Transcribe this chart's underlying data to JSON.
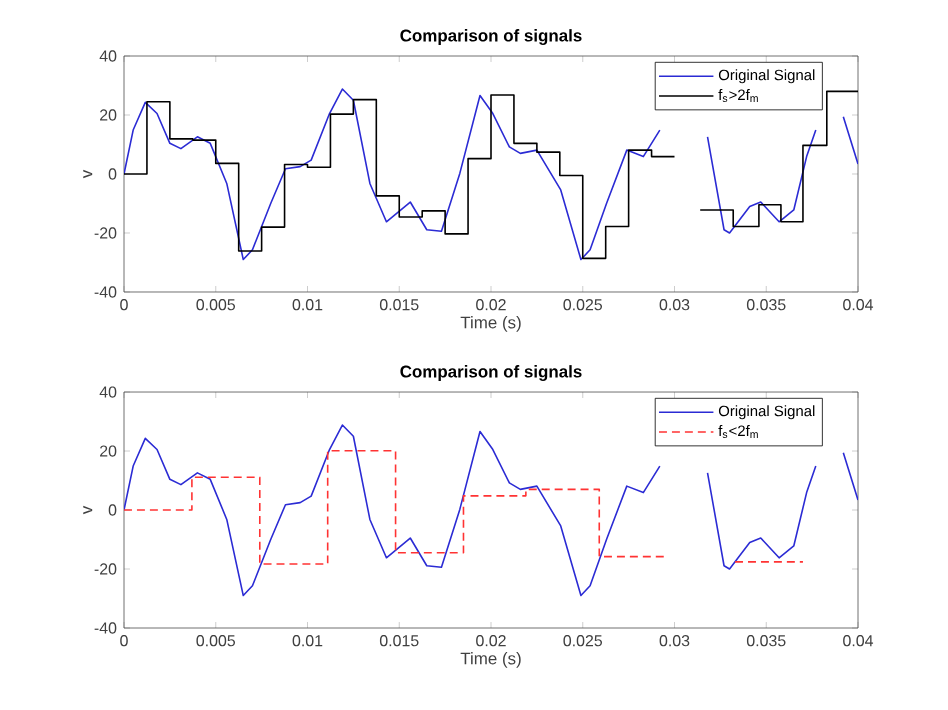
{
  "chart_data": [
    {
      "type": "line",
      "title": "Comparison of signals",
      "xlabel": "Time (s)",
      "ylabel": "v",
      "xlim": [
        0,
        0.04
      ],
      "ylim": [
        -40,
        40
      ],
      "xticks": [
        0,
        0.005,
        0.01,
        0.015,
        0.02,
        0.025,
        0.03,
        0.035,
        0.04
      ],
      "yticks": [
        -40,
        -20,
        0,
        20,
        40
      ],
      "legend": "top right",
      "series": [
        {
          "name": "Original Signal",
          "color": "#2b2bd4",
          "line_style": "solid",
          "x": [
            0,
            0.0005,
            0.00116,
            0.0018,
            0.0025,
            0.0031,
            0.004,
            0.0047,
            0.0056,
            0.0065,
            0.007,
            0.008,
            0.0088,
            0.0096,
            0.0102,
            0.0112,
            0.0119,
            0.0125,
            0.0134,
            0.0143,
            0.0156,
            0.0165,
            0.0173,
            0.0183,
            0.0194,
            0.0201,
            0.021,
            0.0216,
            0.0225,
            0.0238,
            0.0249,
            0.0254,
            0.0263,
            0.0274,
            0.0283,
            0.0292,
            0.0305,
            0.0318,
            0.0327,
            0.033,
            0.0341,
            0.0347,
            0.0357,
            0.0365,
            0.0372,
            0.0377,
            0.0385,
            0.0392,
            0.04
          ],
          "values": [
            0,
            14.9,
            24.3,
            20.5,
            10.4,
            8.6,
            12.6,
            10.4,
            -3.2,
            -29,
            -25.7,
            -9.9,
            1.8,
            2.5,
            4.7,
            20.5,
            28.8,
            25,
            -3.2,
            -16.2,
            -9.5,
            -18.9,
            -19.4,
            0.2,
            26.6,
            20.5,
            9.2,
            7,
            8.1,
            -5.4,
            -29,
            -25.7,
            -9.9,
            8.1,
            5.9,
            14.9,
            null,
            12.6,
            -18.9,
            -20,
            -11,
            -9.5,
            -16.2,
            -12.2,
            5.9,
            14.9,
            null,
            19.4,
            3.4
          ]
        },
        {
          "name": "f$_{s}$>2f$_{m}$",
          "type": "step",
          "color": "#000000",
          "line_style": "solid",
          "x": [
            0,
            0.00125,
            0.0025,
            0.00375,
            0.005,
            0.00625,
            0.0075,
            0.00875,
            0.01,
            0.01125,
            0.0125,
            0.01375,
            0.015,
            0.01625,
            0.0175,
            0.01875,
            0.02,
            0.02125,
            0.0225,
            0.02375,
            0.025,
            0.02625,
            0.0275,
            0.02875,
            0.03,
            0.0314,
            0.0332,
            0.0346,
            0.0358,
            0.037,
            0.0383,
            0.04
          ],
          "values": [
            0,
            24.5,
            11.9,
            11.5,
            3.6,
            -26.1,
            -18,
            3.2,
            2.3,
            20.3,
            25.2,
            -7.4,
            -14.6,
            -12.5,
            -20.3,
            5.2,
            26.8,
            10.4,
            7.4,
            -0.5,
            -28.6,
            -17.8,
            8.1,
            5.9,
            null,
            -12.2,
            -17.8,
            -10.4,
            -16.2,
            9.7,
            28,
            28
          ]
        }
      ]
    },
    {
      "type": "line",
      "title": "Comparison of signals",
      "xlabel": "Time (s)",
      "ylabel": "v",
      "xlim": [
        0,
        0.04
      ],
      "ylim": [
        -40,
        40
      ],
      "xticks": [
        0,
        0.005,
        0.01,
        0.015,
        0.02,
        0.025,
        0.03,
        0.035,
        0.04
      ],
      "yticks": [
        -40,
        -20,
        0,
        20,
        40
      ],
      "legend": "top right",
      "series": [
        {
          "name": "Original Signal",
          "color": "#2b2bd4",
          "line_style": "solid",
          "x": [
            0,
            0.0005,
            0.00116,
            0.0018,
            0.0025,
            0.0031,
            0.004,
            0.0047,
            0.0056,
            0.0065,
            0.007,
            0.008,
            0.0088,
            0.0096,
            0.0102,
            0.0112,
            0.0119,
            0.0125,
            0.0134,
            0.0143,
            0.0156,
            0.0165,
            0.0173,
            0.0183,
            0.0194,
            0.0201,
            0.021,
            0.0216,
            0.0225,
            0.0238,
            0.0249,
            0.0254,
            0.0263,
            0.0274,
            0.0283,
            0.0292,
            0.0305,
            0.0318,
            0.0327,
            0.033,
            0.0341,
            0.0347,
            0.0357,
            0.0365,
            0.0372,
            0.0377,
            0.0385,
            0.0392,
            0.04
          ],
          "values": [
            0,
            14.9,
            24.3,
            20.5,
            10.4,
            8.6,
            12.6,
            10.4,
            -3.2,
            -29,
            -25.7,
            -9.9,
            1.8,
            2.5,
            4.7,
            20.5,
            28.8,
            25,
            -3.2,
            -16.2,
            -9.5,
            -18.9,
            -19.4,
            0.2,
            26.6,
            20.5,
            9.2,
            7,
            8.1,
            -5.4,
            -29,
            -25.7,
            -9.9,
            8.1,
            5.9,
            14.9,
            null,
            12.6,
            -18.9,
            -20,
            -11,
            -9.5,
            -16.2,
            -12.2,
            5.9,
            14.9,
            null,
            19.4,
            3.4
          ]
        },
        {
          "name": "f$_{s}$<2f$_{m}$",
          "type": "step",
          "color": "#ff3333",
          "line_style": "dashed",
          "x": [
            0,
            0.0037,
            0.0074,
            0.0111,
            0.0148,
            0.0185,
            0.0219,
            0.0259,
            0.0296,
            0.0333,
            0.037
          ],
          "values": [
            0,
            11.1,
            -18.3,
            20.1,
            -14.5,
            4.8,
            7,
            -15.8,
            null,
            -17.6,
            -17.6
          ]
        }
      ]
    }
  ]
}
